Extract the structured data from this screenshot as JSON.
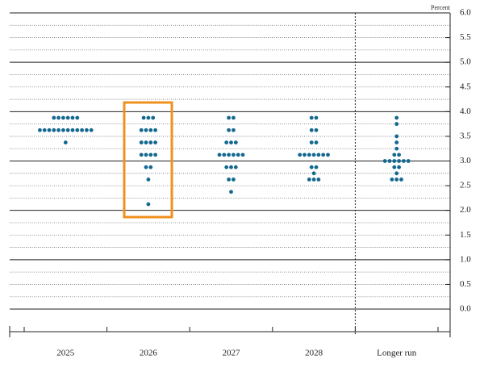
{
  "chart_data": {
    "type": "dot_plot",
    "y_label": "Percent",
    "categories": [
      "2025",
      "2026",
      "2027",
      "2028",
      "Longer run"
    ],
    "values": [
      [
        3.875,
        3.875,
        3.875,
        3.875,
        3.875,
        3.875,
        3.625,
        3.625,
        3.625,
        3.625,
        3.625,
        3.625,
        3.625,
        3.625,
        3.625,
        3.625,
        3.625,
        3.625,
        3.375
      ],
      [
        3.875,
        3.875,
        3.875,
        3.625,
        3.625,
        3.625,
        3.625,
        3.375,
        3.375,
        3.375,
        3.375,
        3.125,
        3.125,
        3.125,
        3.125,
        2.875,
        2.875,
        2.625,
        2.125
      ],
      [
        3.875,
        3.875,
        3.625,
        3.625,
        3.375,
        3.375,
        3.375,
        3.125,
        3.125,
        3.125,
        3.125,
        3.125,
        3.125,
        2.875,
        2.875,
        2.875,
        2.625,
        2.625,
        2.375
      ],
      [
        3.875,
        3.875,
        3.625,
        3.625,
        3.375,
        3.375,
        3.125,
        3.125,
        3.125,
        3.125,
        3.125,
        3.125,
        3.125,
        2.875,
        2.875,
        2.75,
        2.625,
        2.625,
        2.625
      ],
      [
        3.875,
        3.75,
        3.5,
        3.375,
        3.25,
        3.125,
        3.125,
        3,
        3,
        3,
        3,
        3,
        3,
        2.875,
        2.875,
        2.75,
        2.625,
        2.625,
        2.625
      ]
    ],
    "color": "#14688f",
    "ylim": [
      -0.5,
      6
    ],
    "yticks": [
      {
        "value": 0,
        "label": "0.0"
      },
      0.5,
      {
        "value": 1,
        "label": "1.0"
      },
      1.5,
      {
        "value": 2,
        "label": "2.0"
      },
      2.5,
      {
        "value": 3,
        "label": "3.0"
      },
      3.5,
      {
        "value": 4,
        "label": "4.0"
      },
      4.5,
      {
        "value": 5,
        "label": "5.0"
      },
      5.5,
      {
        "value": 6,
        "label": "6.0"
      }
    ],
    "grid": true
  }
}
